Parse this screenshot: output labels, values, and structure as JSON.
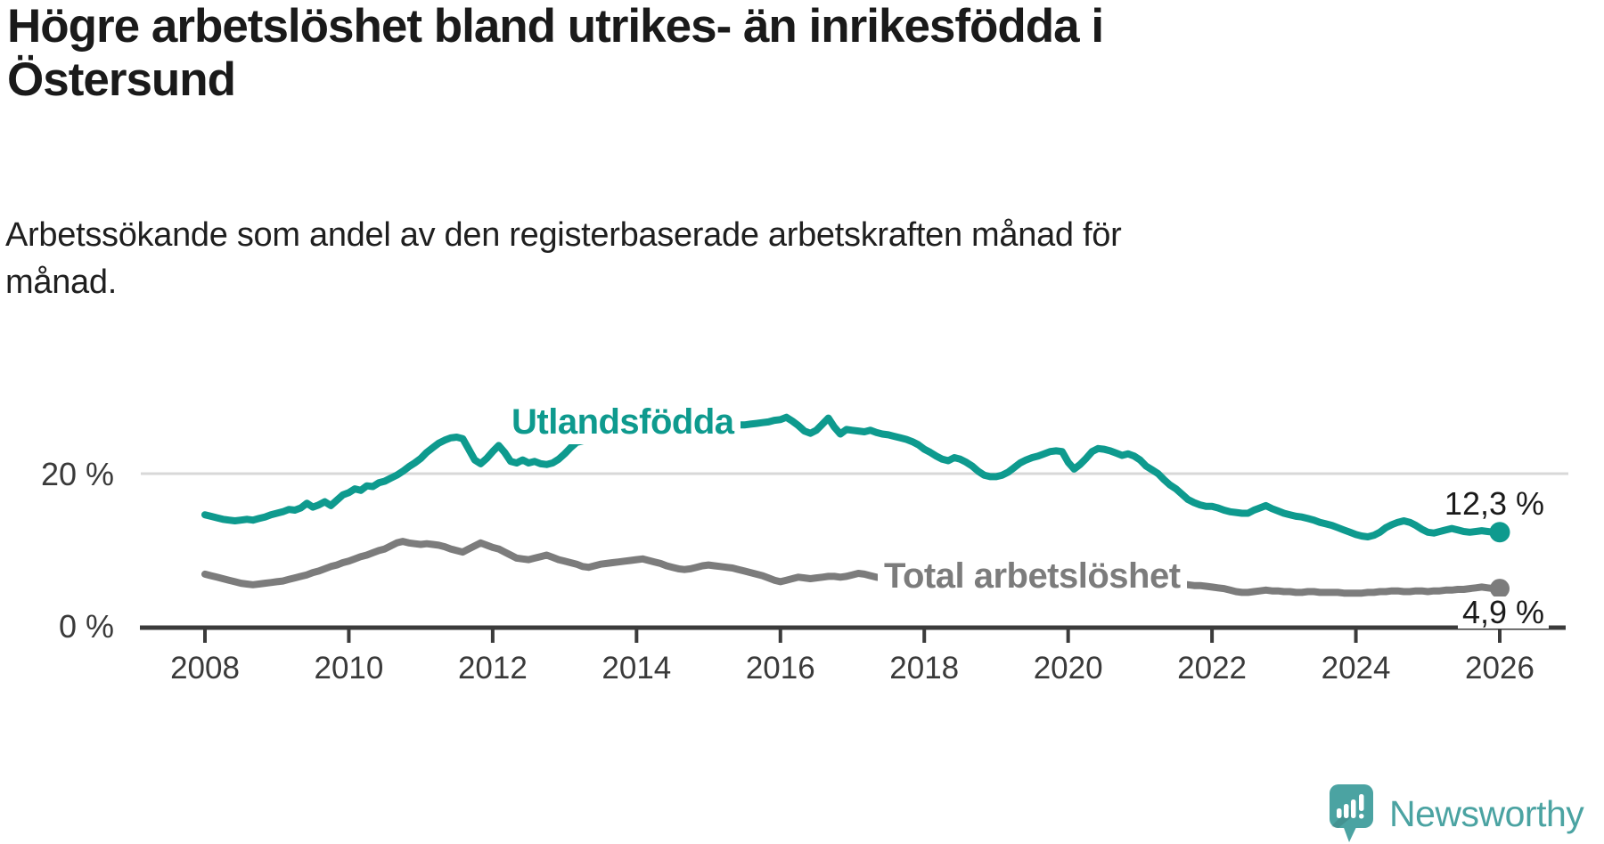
{
  "header": {
    "title_lines": [
      "Högre arbetslöshet bland utrikes- än inrikesfödda i",
      "Östersund"
    ],
    "subtitle_lines": [
      "Arbetssökande som andel av den registerbaserade arbetskraften månad för",
      "månad."
    ]
  },
  "chart_data": {
    "type": "line",
    "title": "Högre arbetslöshet bland utrikes- än inrikesfödda i Östersund",
    "subtitle": "Arbetssökande som andel av den registerbaserade arbetskraften månad för månad.",
    "unit": "%",
    "x_start_year": 2008,
    "x_step_months": 1,
    "x_end_year": 2026,
    "x_ticks": [
      2008,
      2010,
      2012,
      2014,
      2016,
      2018,
      2020,
      2022,
      2024,
      2026
    ],
    "y_ticks": [
      {
        "value": 0,
        "label": "0 %",
        "grid": false
      },
      {
        "value": 20,
        "label": "20 %",
        "grid": true
      }
    ],
    "ylim": [
      0,
      30
    ],
    "xlim": [
      2008,
      2026.5
    ],
    "legend": "inline-labels",
    "grid": "horizontal-20-only",
    "series": [
      {
        "name": "Utlandsfödda",
        "color": "#0E9A8E",
        "end_label": "12,3 %",
        "end_value": 12.3,
        "values": [
          14.6,
          14.4,
          14.2,
          14.0,
          13.9,
          13.8,
          13.9,
          14.0,
          13.9,
          14.1,
          14.3,
          14.6,
          14.8,
          15.0,
          15.3,
          15.2,
          15.5,
          16.1,
          15.6,
          15.9,
          16.3,
          15.8,
          16.5,
          17.2,
          17.5,
          18.0,
          17.8,
          18.4,
          18.3,
          18.8,
          19.0,
          19.4,
          19.8,
          20.3,
          20.9,
          21.4,
          22.0,
          22.8,
          23.4,
          24.0,
          24.4,
          24.7,
          24.8,
          24.6,
          23.2,
          21.8,
          21.3,
          22.0,
          22.9,
          23.7,
          22.8,
          21.6,
          21.4,
          21.8,
          21.4,
          21.6,
          21.3,
          21.2,
          21.4,
          21.9,
          22.6,
          23.4,
          24.1,
          24.3,
          24.5,
          24.6,
          24.7,
          24.8,
          24.9,
          25.0,
          25.1,
          25.2,
          25.3,
          25.4,
          25.4,
          25.5,
          25.5,
          25.6,
          25.6,
          25.7,
          25.7,
          25.8,
          25.9,
          25.9,
          26.0,
          26.1,
          26.2,
          26.2,
          26.3,
          26.4,
          26.4,
          26.5,
          26.6,
          26.7,
          26.8,
          27.0,
          27.1,
          27.4,
          26.9,
          26.3,
          25.6,
          25.3,
          25.7,
          26.5,
          27.3,
          26.1,
          25.2,
          25.8,
          25.7,
          25.6,
          25.5,
          25.7,
          25.4,
          25.2,
          25.1,
          24.9,
          24.7,
          24.5,
          24.2,
          23.8,
          23.2,
          22.8,
          22.3,
          21.9,
          21.7,
          22.1,
          21.9,
          21.5,
          21.0,
          20.3,
          19.8,
          19.6,
          19.6,
          19.8,
          20.2,
          20.8,
          21.4,
          21.8,
          22.1,
          22.3,
          22.6,
          22.9,
          23.0,
          22.9,
          21.5,
          20.6,
          21.2,
          22.0,
          22.9,
          23.3,
          23.2,
          23.0,
          22.7,
          22.4,
          22.6,
          22.3,
          21.8,
          21.0,
          20.5,
          20.0,
          19.2,
          18.5,
          18.0,
          17.3,
          16.6,
          16.2,
          15.9,
          15.7,
          15.7,
          15.5,
          15.2,
          15.0,
          14.9,
          14.8,
          14.8,
          15.2,
          15.5,
          15.8,
          15.4,
          15.1,
          14.8,
          14.6,
          14.4,
          14.3,
          14.1,
          13.9,
          13.6,
          13.4,
          13.2,
          12.9,
          12.6,
          12.3,
          12.0,
          11.8,
          11.7,
          11.9,
          12.3,
          12.9,
          13.3,
          13.6,
          13.8,
          13.6,
          13.2,
          12.7,
          12.3,
          12.2,
          12.4,
          12.6,
          12.8,
          12.6,
          12.4,
          12.3,
          12.4,
          12.5,
          12.4,
          12.3,
          12.3
        ]
      },
      {
        "name": "Total arbetslöshet",
        "color": "#7C7C7C",
        "end_label": "4,9 %",
        "end_value": 4.9,
        "values": [
          6.8,
          6.6,
          6.4,
          6.2,
          6.0,
          5.8,
          5.6,
          5.5,
          5.4,
          5.5,
          5.6,
          5.7,
          5.8,
          5.9,
          6.1,
          6.3,
          6.5,
          6.7,
          7.0,
          7.2,
          7.5,
          7.8,
          8.0,
          8.3,
          8.5,
          8.8,
          9.1,
          9.3,
          9.6,
          9.9,
          10.1,
          10.5,
          10.9,
          11.1,
          10.9,
          10.8,
          10.7,
          10.8,
          10.7,
          10.6,
          10.4,
          10.1,
          9.9,
          9.7,
          10.1,
          10.5,
          10.9,
          10.6,
          10.3,
          10.1,
          9.7,
          9.3,
          8.9,
          8.8,
          8.7,
          8.9,
          9.1,
          9.3,
          9.0,
          8.7,
          8.5,
          8.3,
          8.1,
          7.8,
          7.7,
          7.9,
          8.1,
          8.2,
          8.3,
          8.4,
          8.5,
          8.6,
          8.7,
          8.8,
          8.6,
          8.4,
          8.2,
          7.9,
          7.7,
          7.5,
          7.4,
          7.5,
          7.7,
          7.9,
          8.0,
          7.9,
          7.8,
          7.7,
          7.6,
          7.4,
          7.2,
          7.0,
          6.8,
          6.6,
          6.3,
          6.0,
          5.8,
          6.0,
          6.2,
          6.4,
          6.3,
          6.2,
          6.3,
          6.4,
          6.5,
          6.5,
          6.4,
          6.5,
          6.7,
          6.9,
          6.8,
          6.6,
          6.4,
          6.3,
          6.2,
          6.1,
          6.0,
          5.9,
          5.9,
          5.8,
          5.8,
          5.7,
          5.7,
          5.6,
          5.6,
          5.5,
          5.5,
          5.5,
          5.4,
          5.4,
          5.4,
          5.3,
          5.3,
          5.3,
          5.3,
          5.3,
          5.3,
          5.4,
          5.4,
          5.5,
          5.5,
          5.6,
          5.7,
          5.8,
          5.9,
          6.1,
          6.4,
          6.6,
          6.8,
          6.8,
          6.7,
          6.6,
          6.5,
          6.4,
          6.4,
          6.3,
          6.2,
          6.1,
          6.0,
          5.9,
          5.8,
          5.7,
          5.6,
          5.5,
          5.4,
          5.3,
          5.3,
          5.2,
          5.1,
          5.0,
          4.9,
          4.7,
          4.5,
          4.4,
          4.4,
          4.5,
          4.6,
          4.7,
          4.6,
          4.6,
          4.5,
          4.5,
          4.4,
          4.4,
          4.5,
          4.5,
          4.4,
          4.4,
          4.4,
          4.4,
          4.3,
          4.3,
          4.3,
          4.3,
          4.4,
          4.4,
          4.5,
          4.5,
          4.6,
          4.6,
          4.5,
          4.5,
          4.6,
          4.6,
          4.5,
          4.6,
          4.6,
          4.7,
          4.7,
          4.8,
          4.8,
          4.9,
          5.0,
          5.1,
          5.0,
          4.9,
          4.9
        ]
      }
    ]
  },
  "branding": {
    "name": "Newsworthy",
    "logo": "newsworthy-speech-bubble-chart-logo",
    "color": "#4BA3A2"
  }
}
